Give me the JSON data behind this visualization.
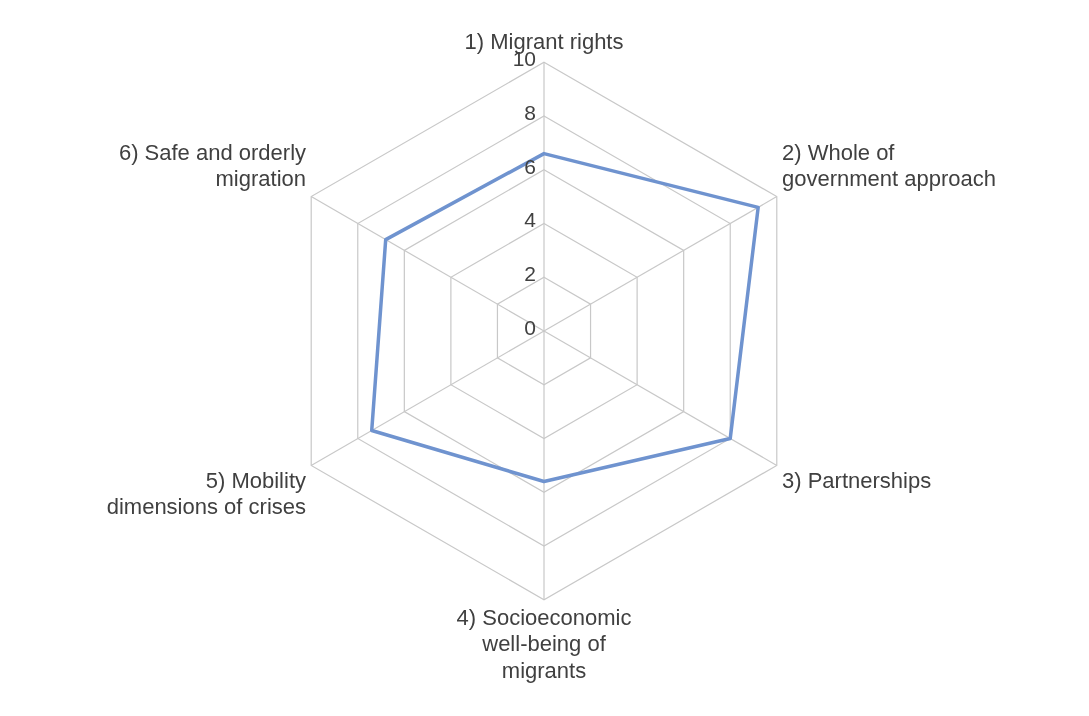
{
  "chart_data": {
    "type": "radar",
    "categories": [
      "1) Migrant rights",
      "2) Whole of government approach",
      "3) Partnerships",
      "4) Socioeconomic well-being of migrants",
      "5) Mobility dimensions of crises",
      "6) Safe and orderly migration"
    ],
    "series": [
      {
        "color": "#6f93cf",
        "values": [
          6.6,
          9.2,
          8.0,
          5.6,
          7.4,
          6.8
        ]
      }
    ],
    "ylim": [
      0,
      10
    ],
    "yticks": [
      0,
      2,
      4,
      6,
      8,
      10
    ],
    "grid": true,
    "legend": false,
    "marker": "none",
    "line_style": "solid"
  }
}
